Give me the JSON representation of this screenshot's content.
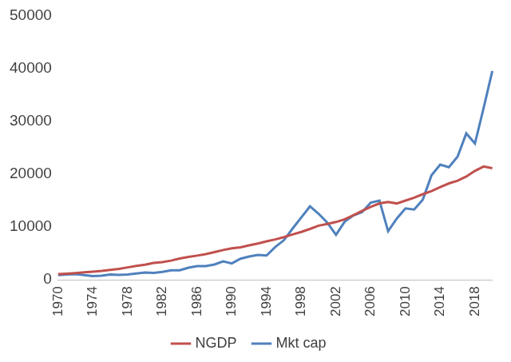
{
  "chart_data": {
    "type": "line",
    "categories": [
      "1970",
      null,
      null,
      null,
      "1974",
      null,
      null,
      null,
      "1978",
      null,
      null,
      null,
      "1982",
      null,
      null,
      null,
      "1986",
      null,
      null,
      null,
      "1990",
      null,
      null,
      null,
      "1994",
      null,
      null,
      null,
      "1998",
      null,
      null,
      null,
      "2002",
      null,
      null,
      null,
      "2006",
      null,
      null,
      null,
      "2010",
      null,
      null,
      null,
      "2014",
      null,
      null,
      null,
      "2018",
      null,
      null
    ],
    "series": [
      {
        "name": "NGDP",
        "color": "#c0504d",
        "values": [
          1073,
          1165,
          1280,
          1425,
          1545,
          1684,
          1873,
          2082,
          2352,
          2627,
          2857,
          3207,
          3343,
          3634,
          4037,
          4339,
          4580,
          4855,
          5236,
          5642,
          5963,
          6158,
          6520,
          6859,
          7287,
          7640,
          8073,
          8578,
          9063,
          9631,
          10252,
          10582,
          10936,
          11458,
          12214,
          13037,
          13815,
          14452,
          14713,
          14449,
          14992,
          15543,
          16197,
          16785,
          17527,
          18238,
          18745,
          19543,
          20612,
          21433,
          21100
        ]
      },
      {
        "name": "Mkt cap",
        "color": "#4f81bd",
        "values": [
          900,
          1000,
          1100,
          900,
          700,
          800,
          1000,
          950,
          1000,
          1200,
          1400,
          1300,
          1500,
          1800,
          1800,
          2300,
          2600,
          2600,
          2900,
          3500,
          3100,
          4000,
          4400,
          4700,
          4600,
          6200,
          7500,
          9700,
          11800,
          13900,
          12500,
          10800,
          8500,
          11000,
          12200,
          12800,
          14600,
          15000,
          9200,
          11600,
          13500,
          13300,
          15200,
          19800,
          21800,
          21300,
          23300,
          27700,
          25800,
          32500,
          39500
        ]
      }
    ],
    "ylim": [
      0,
      50000
    ],
    "yticks": [
      0,
      10000,
      20000,
      30000,
      40000,
      50000
    ],
    "grid": false,
    "legend": "bottom"
  }
}
